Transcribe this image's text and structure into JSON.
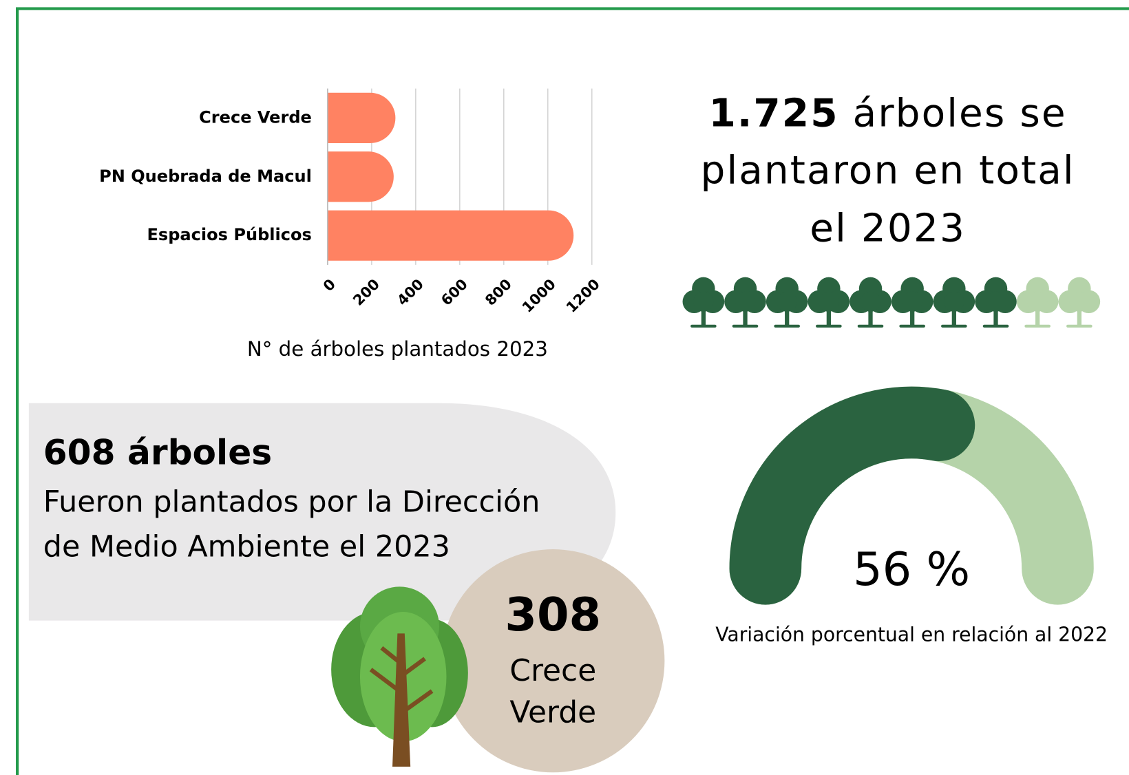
{
  "chart_data": [
    {
      "type": "bar",
      "orientation": "horizontal",
      "categories": [
        "Crece Verde",
        "PN Quebrada de Macul",
        "Espacios Públicos"
      ],
      "values": [
        308,
        300,
        1117
      ],
      "color": "#ff8262",
      "xlim": [
        0,
        1200
      ],
      "xticks": [
        0,
        200,
        400,
        600,
        800,
        1000,
        1200
      ],
      "grid": true,
      "xlabel": "N° de árboles plantados 2023"
    },
    {
      "type": "gauge",
      "value": 56,
      "value_label": "56 %",
      "range": [
        0,
        100
      ],
      "color": "#2a6340",
      "track_color": "#b5d3a9",
      "caption": "Variación porcentual en relación al 2022"
    }
  ],
  "headline": {
    "number": "1.725",
    "lines": [
      "árboles se",
      "plantaron en total",
      "el 2023"
    ]
  },
  "panel": {
    "title": "608 árboles",
    "lines": [
      "Fueron plantados por la Dirección",
      "de Medio Ambiente el 2023"
    ]
  },
  "badge": {
    "number": "308",
    "lines": [
      "Crece",
      "Verde"
    ]
  }
}
